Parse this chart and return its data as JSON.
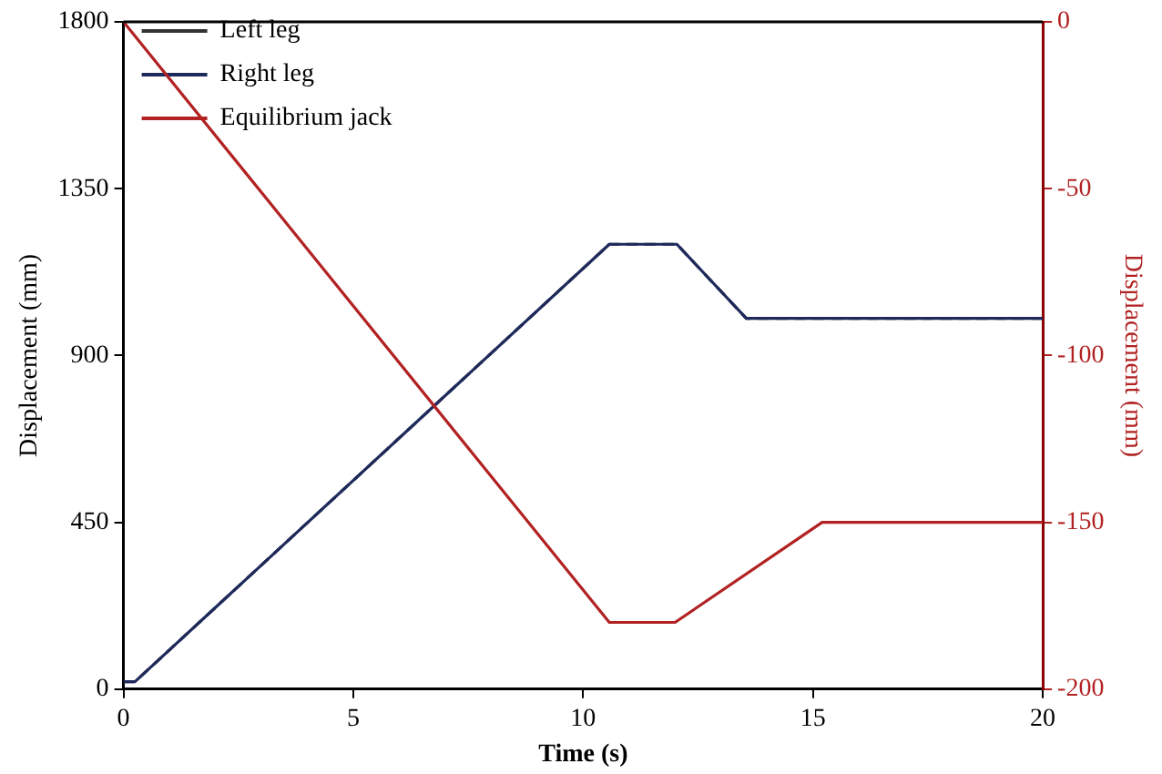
{
  "chart_data": {
    "type": "line",
    "xlabel": "Time (s)",
    "ylabel": "Displacement (mm)",
    "y2label": "Displacement (mm)",
    "xlim": [
      0,
      20
    ],
    "xticks": [
      0,
      5,
      10,
      15,
      20
    ],
    "ylim": [
      0,
      1800
    ],
    "yticks": [
      0,
      450,
      900,
      1350,
      1800
    ],
    "y2lim": [
      -200,
      0
    ],
    "y2ticks": [
      -200,
      -150,
      -100,
      -50,
      0
    ],
    "grid": false,
    "legend": "top left",
    "marker": "none",
    "series": [
      {
        "name": "Left leg",
        "color": "#333333",
        "line_style": "dashed",
        "x": [
          0,
          0.25,
          10.57,
          12.04,
          13.55,
          20
        ],
        "values": [
          20,
          20,
          1200,
          1200,
          1000,
          1000
        ]
      },
      {
        "name": "Right leg",
        "color": "#1f2a5c",
        "line_style": "solid",
        "x": [
          0,
          0.25,
          10.57,
          12.04,
          13.55,
          20
        ],
        "values": [
          20,
          20,
          1200,
          1200,
          1000,
          1000
        ]
      },
      {
        "name": "Equilibrium jack",
        "color": "#b22222",
        "line_style": "solid",
        "axis": "y2",
        "x": [
          0,
          10.57,
          12.0,
          15.2,
          20
        ],
        "values": [
          0,
          -180,
          -180,
          -150,
          -150
        ]
      }
    ]
  }
}
